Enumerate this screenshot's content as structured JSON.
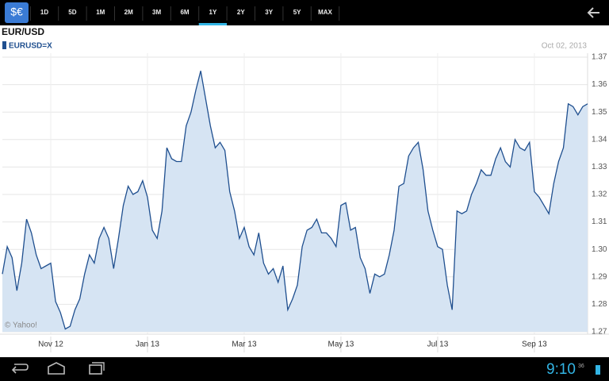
{
  "toolbar": {
    "icon": "$€",
    "tabs": [
      "1D",
      "5D",
      "1M",
      "2M",
      "3M",
      "6M",
      "1Y",
      "2Y",
      "3Y",
      "5Y",
      "MAX"
    ],
    "selected": 6
  },
  "chart_data": {
    "type": "area",
    "title": "EUR/USD",
    "date": "Oct 02, 2013",
    "credit": "© Yahoo!",
    "categories": [
      null,
      null,
      null,
      null,
      null,
      null,
      null,
      null,
      null,
      null,
      "Nov 12",
      null,
      null,
      null,
      null,
      null,
      null,
      null,
      null,
      null,
      null,
      null,
      null,
      null,
      null,
      null,
      null,
      null,
      null,
      null,
      "Jan 13",
      null,
      null,
      null,
      null,
      null,
      null,
      null,
      null,
      null,
      null,
      null,
      null,
      null,
      null,
      null,
      null,
      null,
      null,
      null,
      "Mar 13",
      null,
      null,
      null,
      null,
      null,
      null,
      null,
      null,
      null,
      null,
      null,
      null,
      null,
      null,
      null,
      null,
      null,
      null,
      null,
      "May 13",
      null,
      null,
      null,
      null,
      null,
      null,
      null,
      null,
      null,
      null,
      null,
      null,
      null,
      null,
      null,
      null,
      null,
      null,
      null,
      "Jul 13",
      null,
      null,
      null,
      null,
      null,
      null,
      null,
      null,
      null,
      null,
      null,
      null,
      null,
      null,
      null,
      null,
      null,
      null,
      null,
      "Sep 13",
      null,
      null,
      null,
      null,
      null,
      null,
      null,
      null,
      null,
      null,
      null
    ],
    "series": [
      {
        "name": "EURUSD=X",
        "color": "#1f4f8f",
        "fill": "#d6e4f3",
        "values": [
          1.291,
          1.301,
          1.297,
          1.285,
          1.295,
          1.311,
          1.306,
          1.298,
          1.293,
          1.294,
          1.295,
          1.281,
          1.277,
          1.271,
          1.272,
          1.278,
          1.282,
          1.291,
          1.298,
          1.295,
          1.304,
          1.308,
          1.304,
          1.293,
          1.304,
          1.316,
          1.323,
          1.32,
          1.321,
          1.325,
          1.319,
          1.307,
          1.304,
          1.314,
          1.337,
          1.333,
          1.332,
          1.332,
          1.345,
          1.35,
          1.358,
          1.365,
          1.355,
          1.345,
          1.337,
          1.339,
          1.336,
          1.321,
          1.314,
          1.304,
          1.308,
          1.301,
          1.298,
          1.306,
          1.295,
          1.291,
          1.293,
          1.288,
          1.294,
          1.278,
          1.282,
          1.287,
          1.301,
          1.307,
          1.308,
          1.311,
          1.306,
          1.306,
          1.304,
          1.301,
          1.316,
          1.317,
          1.307,
          1.308,
          1.297,
          1.293,
          1.284,
          1.291,
          1.29,
          1.291,
          1.298,
          1.307,
          1.323,
          1.324,
          1.334,
          1.337,
          1.339,
          1.329,
          1.314,
          1.307,
          1.301,
          1.3,
          1.287,
          1.278,
          1.314,
          1.313,
          1.314,
          1.32,
          1.324,
          1.329,
          1.327,
          1.327,
          1.333,
          1.337,
          1.332,
          1.33,
          1.34,
          1.337,
          1.336,
          1.339,
          1.321,
          1.319,
          1.316,
          1.313,
          1.324,
          1.332,
          1.337,
          1.353,
          1.352,
          1.349,
          1.352,
          1.353
        ]
      }
    ],
    "ylim": [
      1.27,
      1.37
    ],
    "yticks": [
      1.27,
      1.28,
      1.29,
      {
        "value": 1.3,
        "label": "1.30"
      },
      1.31,
      1.32,
      1.33,
      1.34,
      1.35,
      1.36,
      1.37
    ],
    "grid": true
  },
  "status_bar": {
    "time": "9:10",
    "signal": "36"
  }
}
